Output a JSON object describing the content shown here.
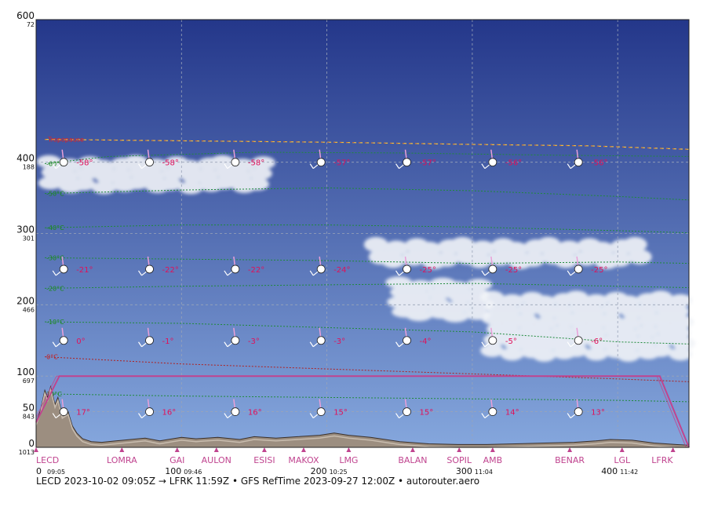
{
  "footer": "LECD 2023-10-02 09:05Z → LFRK 11:59Z • GFS RefTime 2023-09-27 12:00Z • autorouter.aero",
  "colors": {
    "sky_top": "#24378a",
    "sky_bottom": "#85a7dd",
    "terrain": "#9c8e80",
    "route": "#c0448f",
    "isotherm": "#1e8a3a",
    "zero_isotherm": "#b02020",
    "tropopause": "#f0c040",
    "temp_label": "#e0105a",
    "grid": "#9aa4b8"
  },
  "chart_data": {
    "type": "profile",
    "xlim": [
      0,
      449
    ],
    "ylim": [
      0,
      600
    ],
    "y_ticks": [
      {
        "fl": 0,
        "hpa": "1013"
      },
      {
        "fl": 50,
        "hpa": "843"
      },
      {
        "fl": 100,
        "hpa": "697"
      },
      {
        "fl": 200,
        "hpa": "466"
      },
      {
        "fl": 300,
        "hpa": "301"
      },
      {
        "fl": 400,
        "hpa": "188"
      },
      {
        "fl": 600,
        "hpa": "72"
      }
    ],
    "x_ticks": [
      {
        "nm": 0,
        "label": "0",
        "time": "09:05"
      },
      {
        "nm": 100,
        "label": "100",
        "time": "09:46"
      },
      {
        "nm": 200,
        "label": "200",
        "time": "10:25"
      },
      {
        "nm": 300,
        "label": "300",
        "time": "11:04"
      },
      {
        "nm": 400,
        "label": "400",
        "time": "11:42"
      }
    ],
    "waypoints": [
      {
        "name": "LECD",
        "nm": 0
      },
      {
        "name": "LOMRA",
        "nm": 59
      },
      {
        "name": "GAI",
        "nm": 97
      },
      {
        "name": "AULON",
        "nm": 124
      },
      {
        "name": "ESISI",
        "nm": 157
      },
      {
        "name": "MAKOX",
        "nm": 184
      },
      {
        "name": "LMG",
        "nm": 215
      },
      {
        "name": "BALAN",
        "nm": 259
      },
      {
        "name": "SOPIL",
        "nm": 291
      },
      {
        "name": "AMB",
        "nm": 314
      },
      {
        "name": "BENAR",
        "nm": 367
      },
      {
        "name": "LGL",
        "nm": 403
      },
      {
        "name": "LFRK",
        "nm": 438
      }
    ],
    "route": [
      [
        0,
        35
      ],
      [
        16,
        100
      ],
      [
        429,
        100
      ],
      [
        449,
        0
      ]
    ],
    "route_climb": [
      [
        0,
        42
      ],
      [
        14,
        100
      ],
      [
        427,
        100
      ],
      [
        447,
        0
      ]
    ],
    "terrain": [
      [
        0,
        35
      ],
      [
        3,
        52
      ],
      [
        6,
        80
      ],
      [
        8,
        70
      ],
      [
        10,
        85
      ],
      [
        13,
        60
      ],
      [
        15,
        70
      ],
      [
        18,
        45
      ],
      [
        22,
        50
      ],
      [
        25,
        30
      ],
      [
        28,
        20
      ],
      [
        32,
        12
      ],
      [
        38,
        8
      ],
      [
        45,
        7
      ],
      [
        55,
        9
      ],
      [
        65,
        11
      ],
      [
        75,
        13
      ],
      [
        85,
        9
      ],
      [
        100,
        14
      ],
      [
        110,
        12
      ],
      [
        125,
        14
      ],
      [
        140,
        11
      ],
      [
        150,
        15
      ],
      [
        165,
        13
      ],
      [
        180,
        15
      ],
      [
        195,
        17
      ],
      [
        205,
        20
      ],
      [
        215,
        17
      ],
      [
        230,
        14
      ],
      [
        250,
        8
      ],
      [
        270,
        5
      ],
      [
        290,
        4
      ],
      [
        310,
        4
      ],
      [
        330,
        5
      ],
      [
        350,
        6
      ],
      [
        370,
        7
      ],
      [
        385,
        9
      ],
      [
        395,
        11
      ],
      [
        410,
        10
      ],
      [
        425,
        6
      ],
      [
        440,
        4
      ],
      [
        449,
        3
      ]
    ],
    "tropopause_label": "Tropopause",
    "tropopause": [
      [
        6,
        432
      ],
      [
        100,
        430
      ],
      [
        200,
        428
      ],
      [
        300,
        425
      ],
      [
        380,
        423
      ],
      [
        449,
        418
      ]
    ],
    "isotherms": [
      {
        "label": "-60°C",
        "points": [
          [
            6,
            398
          ],
          [
            50,
            408
          ],
          [
            150,
            414
          ],
          [
            250,
            413
          ],
          [
            350,
            410
          ],
          [
            449,
            408
          ]
        ]
      },
      {
        "label": "-50°C",
        "points": [
          [
            6,
            356
          ],
          [
            100,
            361
          ],
          [
            200,
            364
          ],
          [
            300,
            360
          ],
          [
            400,
            352
          ],
          [
            449,
            347
          ]
        ]
      },
      {
        "label": "-40°C",
        "points": [
          [
            6,
            308
          ],
          [
            100,
            312
          ],
          [
            200,
            312
          ],
          [
            300,
            309
          ],
          [
            400,
            304
          ],
          [
            449,
            301
          ]
        ]
      },
      {
        "label": "-30°C",
        "points": [
          [
            6,
            266
          ],
          [
            100,
            264
          ],
          [
            200,
            262
          ],
          [
            300,
            258
          ],
          [
            400,
            260
          ],
          [
            449,
            258
          ]
        ]
      },
      {
        "label": "-20°C",
        "points": [
          [
            6,
            223
          ],
          [
            100,
            226
          ],
          [
            200,
            228
          ],
          [
            300,
            230
          ],
          [
            400,
            226
          ],
          [
            449,
            224
          ]
        ]
      },
      {
        "label": "-10°C",
        "points": [
          [
            6,
            176
          ],
          [
            100,
            174
          ],
          [
            200,
            168
          ],
          [
            300,
            162
          ],
          [
            400,
            148
          ],
          [
            449,
            145
          ]
        ]
      },
      {
        "label": "0°C",
        "points": [
          [
            6,
            127
          ],
          [
            100,
            117
          ],
          [
            200,
            110
          ],
          [
            300,
            103
          ],
          [
            400,
            96
          ],
          [
            449,
            92
          ]
        ]
      },
      {
        "label": "10°C",
        "points": [
          [
            6,
            75
          ],
          [
            100,
            72
          ],
          [
            200,
            70
          ],
          [
            300,
            68
          ],
          [
            400,
            66
          ],
          [
            449,
            64
          ]
        ]
      }
    ],
    "wind_rows": [
      {
        "fl": 400,
        "nm": [
          19,
          78,
          137,
          196,
          255,
          314,
          373
        ],
        "temps": [
          "-58°",
          "-58°",
          "-58°",
          "-57°",
          "-57°",
          "-56°",
          "-56°"
        ]
      },
      {
        "fl": 250,
        "nm": [
          19,
          78,
          137,
          196,
          255,
          314,
          373
        ],
        "temps": [
          "-21°",
          "-22°",
          "-22°",
          "-24°",
          "-25°",
          "-25°",
          "-25°"
        ]
      },
      {
        "fl": 150,
        "nm": [
          19,
          78,
          137,
          196,
          255,
          314,
          373
        ],
        "temps": [
          "0°",
          "-1°",
          "-3°",
          "-3°",
          "-4°",
          "-5°",
          "-6°"
        ]
      },
      {
        "fl": 50,
        "nm": [
          19,
          78,
          137,
          196,
          255,
          314,
          373
        ],
        "temps": [
          "17°",
          "16°",
          "16°",
          "15°",
          "15°",
          "14°",
          "13°"
        ]
      }
    ],
    "clouds": [
      {
        "nm": [
          5,
          160
        ],
        "fl": [
          360,
          405
        ]
      },
      {
        "nm": [
          230,
          420
        ],
        "fl": [
          255,
          290
        ]
      },
      {
        "nm": [
          245,
          310
        ],
        "fl": [
          180,
          235
        ]
      },
      {
        "nm": [
          310,
          449
        ],
        "fl": [
          125,
          215
        ]
      }
    ]
  }
}
